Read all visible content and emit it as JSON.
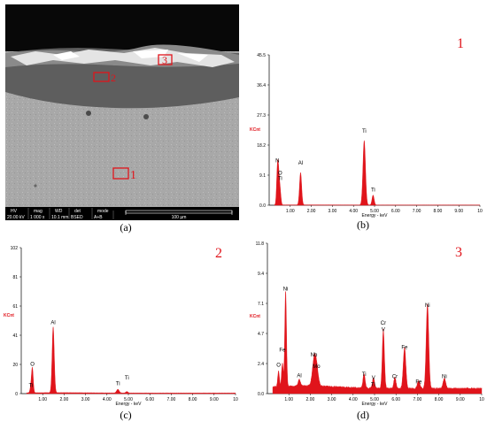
{
  "sem": {
    "caption": "(a)",
    "region_labels": [
      "1",
      "2",
      "3"
    ],
    "info_headers": [
      "HV",
      "mag",
      "WD",
      "det",
      "mode"
    ],
    "info_values": [
      "20.00 kV",
      "1 000 x",
      "10.1 mm",
      "BSED",
      "A+B"
    ],
    "scale_label": "100 µm"
  },
  "spectra": [
    {
      "id": "b",
      "caption": "(b)",
      "point_label": "1",
      "y_unit": "KCnt",
      "x_label": "Energy - keV",
      "y_ticks": [
        "0.0",
        "9.1",
        "18.2",
        "27.3",
        "36.4",
        "45.5"
      ],
      "x_ticks": [
        "1.00",
        "2.00",
        "3.00",
        "4.00",
        "5.00",
        "6.00",
        "7.00",
        "8.00",
        "9.00",
        "10"
      ],
      "ymax": 45.5,
      "peak_labels": [
        {
          "text": "N",
          "x": 0.39,
          "y": 13.0
        },
        {
          "text": "O",
          "x": 0.52,
          "y": 9.3
        },
        {
          "text": "Ti",
          "x": 0.52,
          "y": 7.6
        },
        {
          "text": "Al",
          "x": 1.49,
          "y": 12.3
        },
        {
          "text": "Ti",
          "x": 4.51,
          "y": 22.0
        },
        {
          "text": "Ti",
          "x": 4.93,
          "y": 4.2
        }
      ]
    },
    {
      "id": "c",
      "caption": "(c)",
      "point_label": "2",
      "y_unit": "KCnt",
      "x_label": "Energy - keV",
      "y_ticks": [
        "0",
        "20",
        "41",
        "61",
        "81",
        "102"
      ],
      "x_ticks": [
        "1.00",
        "2.00",
        "3.00",
        "4.00",
        "5.00",
        "6.00",
        "7.00",
        "8.00",
        "9.00",
        "10"
      ],
      "ymax": 102,
      "peak_labels": [
        {
          "text": "O",
          "x": 0.52,
          "y": 19.5
        },
        {
          "text": "Ti",
          "x": 0.45,
          "y": 4.5
        },
        {
          "text": "Al",
          "x": 1.49,
          "y": 48.5
        },
        {
          "text": "Ti",
          "x": 4.51,
          "y": 6.0
        },
        {
          "text": "Ti",
          "x": 4.93,
          "y": 10.0
        }
      ]
    },
    {
      "id": "d",
      "caption": "(d)",
      "point_label": "3",
      "y_unit": "KCnt",
      "x_label": "Energy - keV",
      "y_ticks": [
        "0.0",
        "2.4",
        "4.7",
        "7.1",
        "9.4",
        "11.8"
      ],
      "x_ticks": [
        "1.00",
        "2.00",
        "3.00",
        "4.00",
        "5.00",
        "6.00",
        "7.00",
        "8.00",
        "9.00",
        "10"
      ],
      "ymax": 11.8,
      "peak_labels": [
        {
          "text": "Ni",
          "x": 0.85,
          "y": 8.1
        },
        {
          "text": "Fe",
          "x": 0.7,
          "y": 3.3
        },
        {
          "text": "O",
          "x": 0.52,
          "y": 2.1
        },
        {
          "text": "Al",
          "x": 1.49,
          "y": 1.3
        },
        {
          "text": "Nb",
          "x": 2.17,
          "y": 2.9
        },
        {
          "text": "Mo",
          "x": 2.29,
          "y": 2.0
        },
        {
          "text": "Ti",
          "x": 4.51,
          "y": 1.4
        },
        {
          "text": "V",
          "x": 4.95,
          "y": 1.1
        },
        {
          "text": "Ti",
          "x": 4.93,
          "y": 0.6
        },
        {
          "text": "Cr",
          "x": 5.41,
          "y": 5.4
        },
        {
          "text": "V",
          "x": 5.41,
          "y": 4.9
        },
        {
          "text": "Cr",
          "x": 5.95,
          "y": 1.2
        },
        {
          "text": "Fe",
          "x": 6.4,
          "y": 3.5
        },
        {
          "text": "Fe",
          "x": 7.06,
          "y": 0.8
        },
        {
          "text": "Ni",
          "x": 7.47,
          "y": 6.8
        },
        {
          "text": "Ni",
          "x": 8.26,
          "y": 1.2
        }
      ]
    }
  ],
  "colors": {
    "spectrum": "#e0141b",
    "label": "#e0141b"
  }
}
